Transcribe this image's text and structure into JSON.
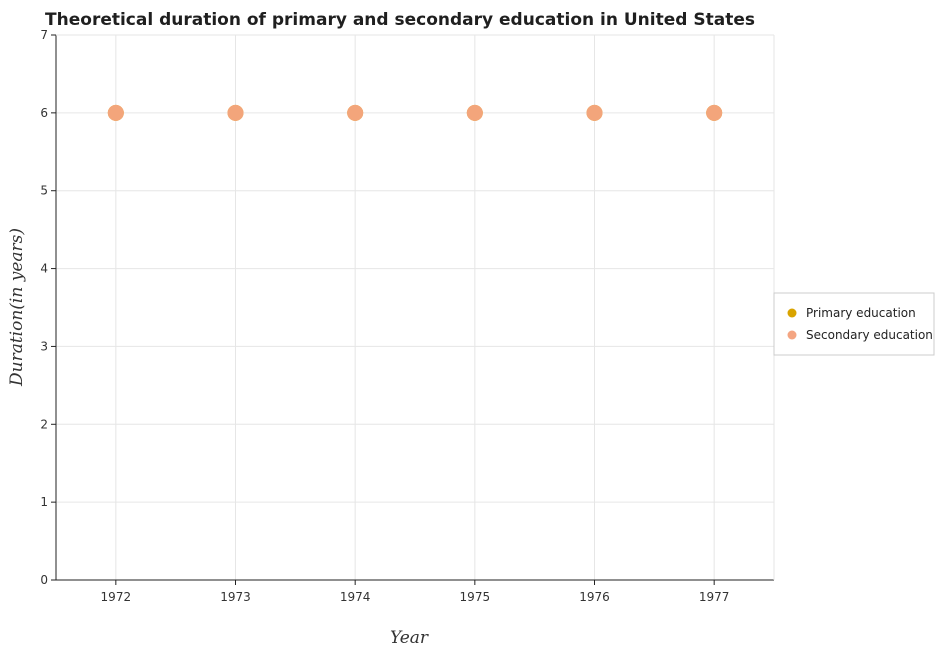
{
  "chart_data": {
    "type": "scatter",
    "title": "Theoretical duration of primary and secondary education in United States",
    "xlabel": "Year",
    "ylabel": "Duration(in years)",
    "categories": [
      "1972",
      "1973",
      "1974",
      "1975",
      "1976",
      "1977"
    ],
    "ylim": [
      0,
      7
    ],
    "yticks": [
      "0",
      "1",
      "2",
      "3",
      "4",
      "5",
      "6",
      "7"
    ],
    "grid": true,
    "legend_position": "right",
    "series": [
      {
        "name": "Primary education",
        "color": "#d9a400",
        "values": [
          6,
          6,
          6,
          6,
          6,
          6
        ]
      },
      {
        "name": "Secondary education",
        "color": "#f4a582",
        "values": [
          6,
          6,
          6,
          6,
          6,
          6
        ]
      }
    ]
  }
}
